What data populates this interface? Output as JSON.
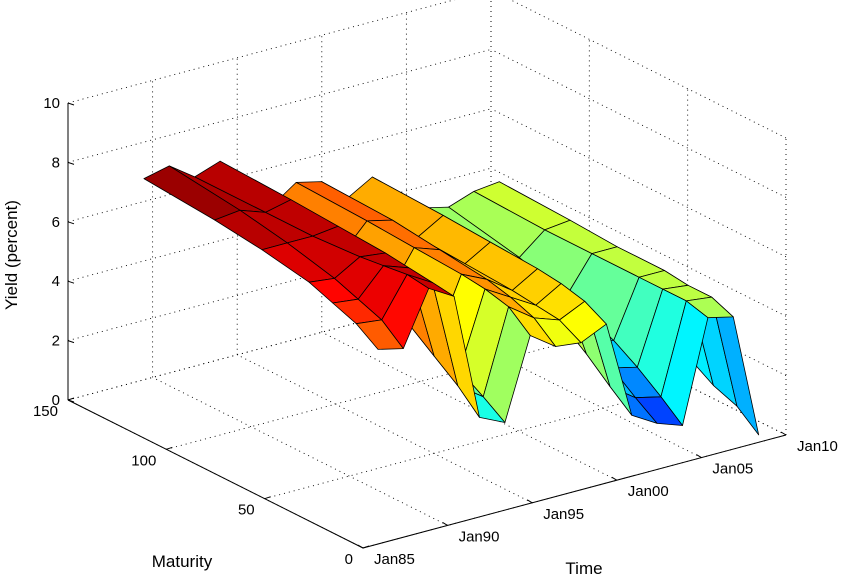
{
  "chart_data": {
    "type": "surface",
    "title": "",
    "xlabel": "Time",
    "ylabel": "Maturity",
    "zlabel": "Yield (percent)",
    "x_ticks": [
      "Jan85",
      "Jan90",
      "Jan95",
      "Jan00",
      "Jan05",
      "Jan10"
    ],
    "y_ticks": [
      "0",
      "50",
      "100",
      "150"
    ],
    "z_ticks": [
      "0",
      "2",
      "4",
      "6",
      "8",
      "10"
    ],
    "zlim": [
      0,
      10
    ],
    "ylim": [
      0,
      150
    ],
    "xlim_years": [
      1985,
      2010
    ],
    "grid": true,
    "colormap": "jet",
    "maturities": [
      1,
      12,
      24,
      36,
      60,
      84,
      120
    ],
    "surface": {
      "time": [
        1986.0,
        1987.5,
        1989.0,
        1990.5,
        1992.0,
        1993.5,
        1995.0,
        1996.5,
        1998.0,
        1999.5,
        2001.0,
        2002.5,
        2004.0,
        2005.5,
        2007.0,
        2008.5
      ],
      "yields": [
        [
          6.5,
          7.0,
          7.3,
          7.6,
          7.9,
          8.1,
          8.3
        ],
        [
          6.3,
          6.9,
          7.2,
          7.5,
          7.9,
          8.2,
          8.5
        ],
        [
          8.1,
          8.2,
          8.1,
          8.0,
          7.9,
          7.9,
          7.9
        ],
        [
          7.6,
          7.7,
          7.8,
          7.9,
          8.0,
          8.1,
          8.2
        ],
        [
          3.3,
          4.0,
          4.6,
          5.2,
          6.0,
          6.6,
          7.1
        ],
        [
          2.9,
          3.4,
          3.9,
          4.5,
          5.3,
          5.8,
          6.2
        ],
        [
          5.6,
          6.2,
          6.4,
          6.5,
          6.6,
          6.7,
          6.8
        ],
        [
          5.0,
          5.6,
          5.9,
          6.1,
          6.3,
          6.5,
          6.6
        ],
        [
          4.9,
          5.3,
          5.4,
          5.5,
          5.6,
          5.7,
          5.8
        ],
        [
          5.3,
          5.7,
          5.9,
          6.0,
          6.1,
          6.2,
          6.3
        ],
        [
          2.0,
          2.6,
          3.3,
          3.9,
          4.6,
          5.0,
          5.3
        ],
        [
          1.5,
          2.0,
          2.6,
          3.2,
          3.9,
          4.4,
          4.8
        ],
        [
          1.2,
          1.8,
          2.4,
          2.9,
          3.6,
          4.1,
          4.6
        ],
        [
          4.6,
          4.8,
          4.8,
          4.8,
          4.8,
          4.8,
          4.9
        ],
        [
          4.4,
          4.7,
          4.7,
          4.8,
          4.8,
          4.9,
          5.0
        ],
        [
          0.2,
          0.8,
          1.1,
          1.6,
          2.6,
          3.1,
          3.7
        ]
      ]
    }
  }
}
